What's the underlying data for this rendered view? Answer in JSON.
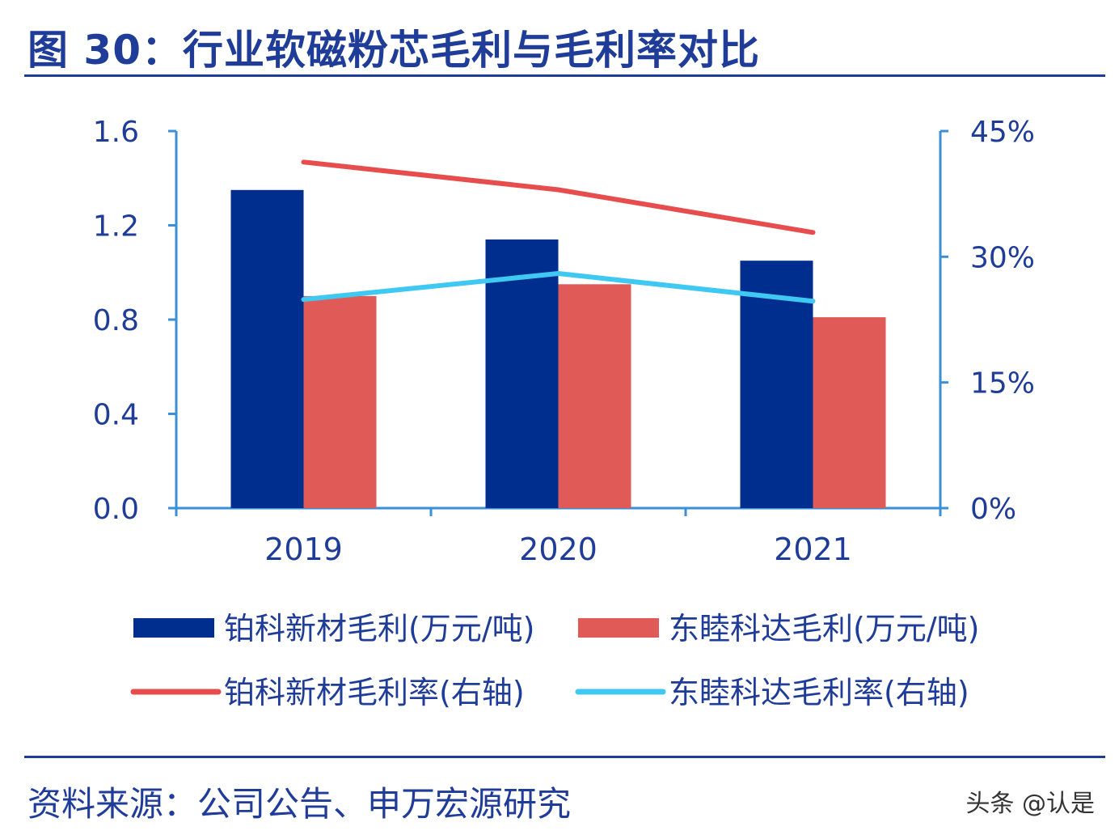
{
  "title": "图 30：行业软磁粉芯毛利与毛利率对比",
  "source": "资料来源：公司公告、申万宏源研究",
  "watermark": "头条 @认是",
  "chart_data": {
    "type": "bar+line",
    "categories": [
      "2019",
      "2020",
      "2021"
    ],
    "left_axis": {
      "range": [
        0,
        1.6
      ],
      "ticks": [
        "0.0",
        "0.4",
        "0.8",
        "1.2",
        "1.6"
      ]
    },
    "right_axis": {
      "range": [
        0,
        45
      ],
      "ticks": [
        "0%",
        "15%",
        "30%",
        "45%"
      ]
    },
    "series": [
      {
        "name": "铂科新材毛利(万元/吨)",
        "type": "bar",
        "axis": "left",
        "color": "#002e8f",
        "values": [
          1.35,
          1.14,
          1.05
        ]
      },
      {
        "name": "东睦科达毛利(万元/吨)",
        "type": "bar",
        "axis": "left",
        "color": "#e05a57",
        "values": [
          0.9,
          0.95,
          0.81
        ]
      },
      {
        "name": "铂科新材毛利率(右轴)",
        "type": "line",
        "axis": "right",
        "color": "#e84d4d",
        "values": [
          41.3,
          38.0,
          32.9
        ]
      },
      {
        "name": "东睦科达毛利率(右轴)",
        "type": "line",
        "axis": "right",
        "color": "#3fc8f2",
        "values": [
          24.9,
          28.0,
          24.7
        ]
      }
    ],
    "grid": false,
    "legend": "bottom"
  }
}
